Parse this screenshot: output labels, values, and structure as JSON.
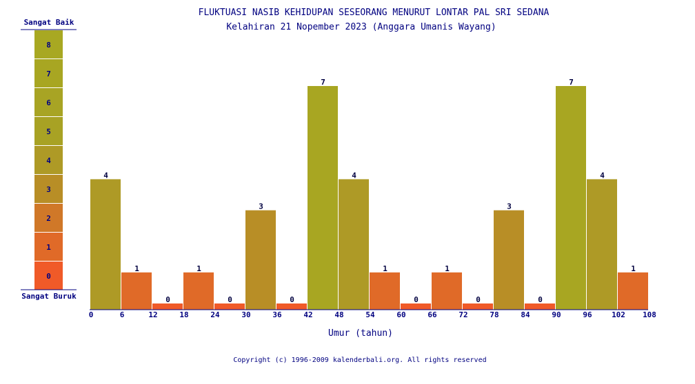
{
  "title": "FLUKTUASI NASIB KEHIDUPAN SESEORANG MENURUT LONTAR PAL SRI SEDANA",
  "subtitle": "Kelahiran 21 Nopember 2023 (Anggara Umanis Wayang)",
  "scale": {
    "top_label": "Sangat Baik",
    "bottom_label": "Sangat Buruk",
    "levels": [
      "8",
      "7",
      "6",
      "5",
      "4",
      "3",
      "2",
      "1",
      "0"
    ]
  },
  "copyright": "Copyright (c) 1996-2009 kalenderbali.org. All rights reserved",
  "colors": {
    "text": "#000080",
    "level_0": "#f05a28",
    "level_1": "#e06a28",
    "level_2": "#d07828",
    "level_3": "#b88e26",
    "level_4": "#ae9a26",
    "level_5": "#a8a224",
    "level_6": "#a8a424",
    "level_7": "#a8a622",
    "level_8": "#a8a822"
  },
  "chart_data": {
    "type": "bar",
    "title": "FLUKTUASI NASIB KEHIDUPAN SESEORANG MENURUT LONTAR PAL SRI SEDANA",
    "subtitle": "Kelahiran 21 Nopember 2023 (Anggara Umanis Wayang)",
    "xlabel": "Umur (tahun)",
    "x_ticks": [
      "0",
      "6",
      "12",
      "18",
      "24",
      "30",
      "36",
      "42",
      "48",
      "54",
      "60",
      "66",
      "72",
      "78",
      "84",
      "90",
      "96",
      "102",
      "108"
    ],
    "values": [
      4,
      1,
      0,
      1,
      0,
      3,
      0,
      7,
      4,
      1,
      0,
      1,
      0,
      3,
      0,
      7,
      4,
      1
    ],
    "ylim": [
      0,
      8
    ],
    "grid": false,
    "legend": "none"
  }
}
